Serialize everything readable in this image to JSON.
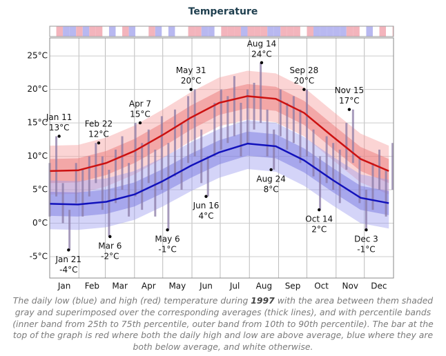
{
  "chart_data": {
    "type": "line",
    "title": "Temperature",
    "xlim": [
      0,
      365
    ],
    "xticks": [
      {
        "value": 0,
        "label": "Jan"
      },
      {
        "value": 31,
        "label": "Feb"
      },
      {
        "value": 59,
        "label": "Mar"
      },
      {
        "value": 90,
        "label": "Apr"
      },
      {
        "value": 120,
        "label": "May"
      },
      {
        "value": 151,
        "label": "Jun"
      },
      {
        "value": 181,
        "label": "Jul"
      },
      {
        "value": 212,
        "label": "Aug"
      },
      {
        "value": 243,
        "label": "Sep"
      },
      {
        "value": 273,
        "label": "Oct"
      },
      {
        "value": 304,
        "label": "Nov"
      },
      {
        "value": 334,
        "label": "Dec"
      }
    ],
    "ylim": [
      -8.2,
      27.7
    ],
    "yticks": [
      {
        "value": -5,
        "label": "-5°C"
      },
      {
        "value": 0,
        "label": "0°C"
      },
      {
        "value": 5,
        "label": "5°C"
      },
      {
        "value": 10,
        "label": "10°C"
      },
      {
        "value": 15,
        "label": "15°C"
      },
      {
        "value": 20,
        "label": "20°C"
      },
      {
        "value": 25,
        "label": "25°C"
      }
    ],
    "grid": true,
    "normals": {
      "x": [
        0,
        30,
        60,
        90,
        120,
        150,
        180,
        210,
        240,
        270,
        300,
        330,
        360
      ],
      "high": {
        "color": "#cc1111",
        "avg": [
          7.8,
          7.9,
          9.0,
          10.8,
          13.2,
          15.8,
          18.0,
          19.0,
          18.6,
          16.5,
          13.0,
          9.6,
          7.8
        ],
        "p10": [
          4.3,
          4.4,
          5.5,
          7.3,
          9.7,
          12.3,
          14.5,
          15.5,
          15.1,
          13.0,
          9.5,
          6.1,
          4.3
        ],
        "p25": [
          6.0,
          6.1,
          7.2,
          9.0,
          11.4,
          14.0,
          16.2,
          17.2,
          16.8,
          14.7,
          11.2,
          7.8,
          6.0
        ],
        "p75": [
          9.6,
          9.7,
          10.8,
          12.6,
          15.0,
          17.6,
          19.8,
          20.8,
          20.4,
          18.3,
          14.8,
          11.4,
          9.6
        ],
        "p90": [
          11.6,
          11.7,
          12.8,
          14.6,
          17.0,
          19.6,
          21.8,
          22.8,
          22.4,
          20.3,
          16.8,
          13.4,
          11.6
        ]
      },
      "low": {
        "color": "#1111bb",
        "avg": [
          2.9,
          2.8,
          3.2,
          4.3,
          6.3,
          8.6,
          10.6,
          11.9,
          11.5,
          9.4,
          6.5,
          3.8,
          3.0
        ],
        "p10": [
          -0.9,
          -1.0,
          -0.6,
          0.5,
          2.5,
          4.8,
          6.8,
          8.1,
          7.7,
          5.6,
          2.7,
          0.0,
          -0.8
        ],
        "p25": [
          1.1,
          1.0,
          1.4,
          2.5,
          4.5,
          6.8,
          8.8,
          10.1,
          9.7,
          7.6,
          4.7,
          2.0,
          1.2
        ],
        "p75": [
          4.7,
          4.6,
          5.0,
          6.1,
          8.1,
          10.4,
          12.4,
          13.7,
          13.3,
          11.2,
          8.3,
          5.6,
          4.8
        ],
        "p90": [
          6.4,
          6.3,
          6.7,
          7.8,
          9.8,
          12.1,
          14.1,
          15.4,
          15.0,
          12.9,
          10.0,
          7.3,
          6.5
        ]
      }
    },
    "daily": {
      "x": [
        0,
        7,
        14,
        21,
        28,
        35,
        42,
        49,
        56,
        63,
        70,
        77,
        84,
        91,
        98,
        105,
        112,
        119,
        126,
        133,
        140,
        147,
        154,
        161,
        168,
        175,
        182,
        189,
        196,
        203,
        210,
        217,
        224,
        231,
        238,
        245,
        252,
        259,
        266,
        273,
        280,
        287,
        294,
        301,
        308,
        315,
        322,
        329,
        336,
        343,
        350,
        357,
        364
      ],
      "high": [
        9,
        13,
        6,
        2,
        9,
        8,
        10,
        12,
        10,
        8,
        11,
        13,
        9,
        15,
        12,
        14,
        11,
        16,
        12,
        17,
        15,
        19,
        20,
        14,
        10,
        18,
        20,
        19,
        22,
        18,
        20,
        21,
        24,
        17,
        14,
        20,
        18,
        19,
        17,
        20,
        14,
        10,
        13,
        12,
        11,
        15,
        17,
        10,
        5,
        9,
        11,
        8,
        12
      ],
      "low": [
        1,
        4,
        0,
        -4,
        3,
        1,
        4,
        6,
        2,
        -2,
        3,
        5,
        1,
        4,
        2,
        6,
        1,
        5,
        -1,
        7,
        5,
        9,
        10,
        6,
        4,
        10,
        11,
        12,
        13,
        10,
        12,
        14,
        15,
        10,
        8,
        13,
        11,
        12,
        9,
        10,
        7,
        2,
        6,
        5,
        3,
        8,
        9,
        3,
        -1,
        2,
        5,
        1,
        5
      ]
    },
    "annotations": [
      {
        "date": "Jan 11",
        "label": "13°C",
        "x": 10,
        "value": 13
      },
      {
        "date": "Jan 21",
        "label": "-4°C",
        "x": 20,
        "value": -4
      },
      {
        "date": "Feb 22",
        "label": "12°C",
        "x": 52,
        "value": 12
      },
      {
        "date": "Mar 6",
        "label": "-2°C",
        "x": 64,
        "value": -2
      },
      {
        "date": "Apr 7",
        "label": "15°C",
        "x": 96,
        "value": 15
      },
      {
        "date": "May 6",
        "label": "-1°C",
        "x": 125,
        "value": -1
      },
      {
        "date": "May 31",
        "label": "20°C",
        "x": 150,
        "value": 20
      },
      {
        "date": "Jun 16",
        "label": "4°C",
        "x": 166,
        "value": 4
      },
      {
        "date": "Aug 14",
        "label": "24°C",
        "x": 225,
        "value": 24
      },
      {
        "date": "Aug 24",
        "label": "8°C",
        "x": 235,
        "value": 8
      },
      {
        "date": "Sep 28",
        "label": "20°C",
        "x": 270,
        "value": 20
      },
      {
        "date": "Oct 14",
        "label": "2°C",
        "x": 286,
        "value": 2
      },
      {
        "date": "Nov 15",
        "label": "17°C",
        "x": 318,
        "value": 17
      },
      {
        "date": "Dec 3",
        "label": "-1°C",
        "x": 336,
        "value": -1
      }
    ]
  },
  "caption": {
    "before": "The daily low (blue) and high (red) temperature during ",
    "year": "1997",
    "after": " with the area between them shaded gray and superimposed over the corresponding averages (thick lines), and with percentile bands (inner band from 25th to 75th percentile, outer band from 10th to 90th percentile). The bar at the top of the graph is red where both the daily high and low are above average, blue where they are both below average, and white otherwise."
  }
}
